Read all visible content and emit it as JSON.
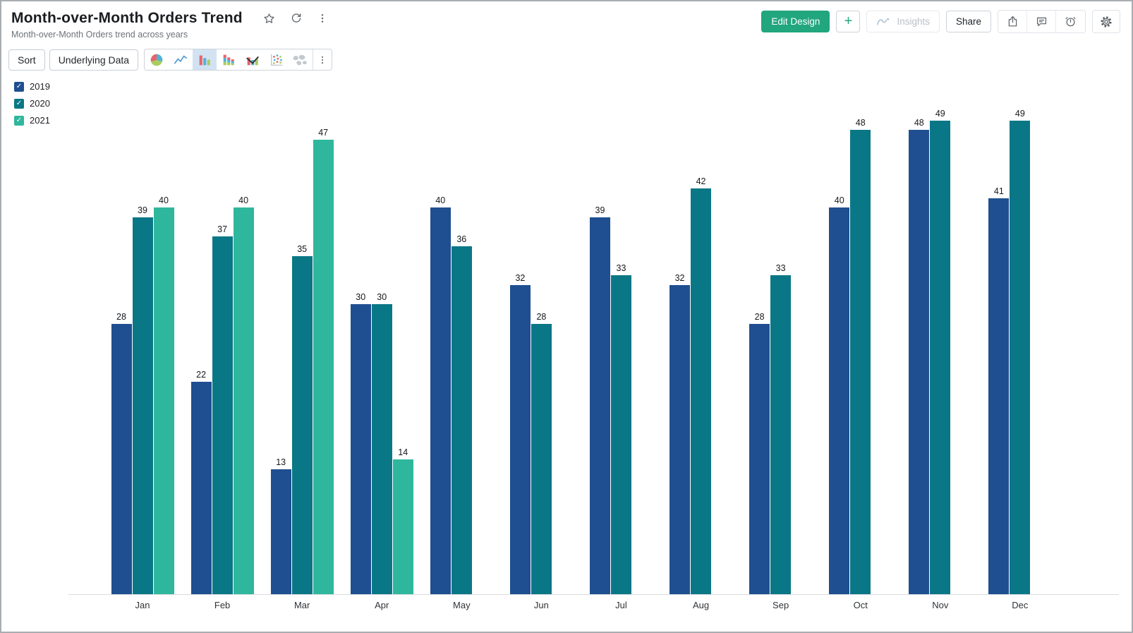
{
  "header": {
    "title": "Month-over-Month Orders Trend",
    "subtitle": "Month-over-Month Orders trend across years",
    "actions": {
      "edit_design": "Edit Design",
      "add": "+",
      "insights": "Insights",
      "share": "Share"
    }
  },
  "toolbar": {
    "sort": "Sort",
    "underlying_data": "Underlying Data",
    "chart_types": [
      "pie-chart",
      "line-chart",
      "bar-chart",
      "stacked-bar-chart",
      "combo-chart",
      "scatter-chart",
      "map-chart"
    ],
    "selected_chart_type": "bar-chart"
  },
  "chart_data": {
    "type": "bar",
    "title": "Month-over-Month Orders Trend",
    "categories": [
      "Jan",
      "Feb",
      "Mar",
      "Apr",
      "May",
      "Jun",
      "Jul",
      "Aug",
      "Sep",
      "Oct",
      "Nov",
      "Dec"
    ],
    "series": [
      {
        "name": "2019",
        "color": "#1f4f90",
        "checked": true,
        "values": [
          28,
          22,
          13,
          30,
          40,
          32,
          39,
          32,
          28,
          40,
          48,
          41
        ]
      },
      {
        "name": "2020",
        "color": "#0a7786",
        "checked": true,
        "values": [
          39,
          37,
          35,
          30,
          36,
          28,
          33,
          42,
          33,
          48,
          49,
          49
        ]
      },
      {
        "name": "2021",
        "color": "#2fb79d",
        "checked": true,
        "values": [
          40,
          40,
          47,
          14,
          null,
          null,
          null,
          null,
          null,
          null,
          null,
          null
        ]
      }
    ],
    "value_labels": true,
    "legend_position": "top-left",
    "grid": false,
    "ylim": [
      0,
      49
    ],
    "xlabel": "",
    "ylabel": ""
  },
  "colors": {
    "accent_green": "#21a67e",
    "selected_icon_bg": "#d2e2f2",
    "axis_line": "#d9dce0",
    "icon_grey": "#5b6066"
  }
}
